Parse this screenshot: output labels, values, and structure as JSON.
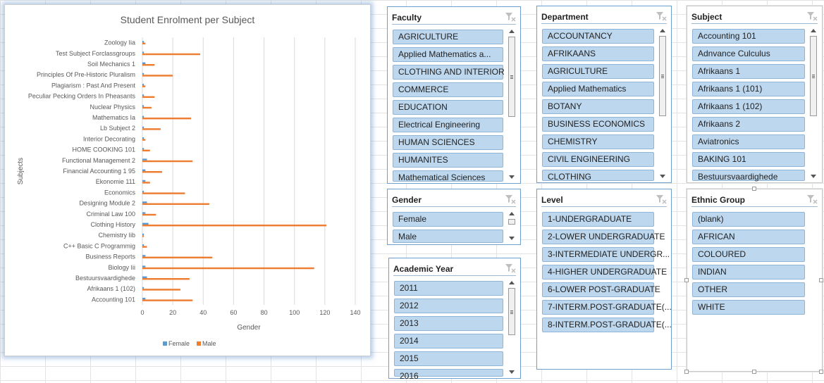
{
  "chart_data": {
    "type": "bar",
    "orientation": "horizontal",
    "title": "Student Enrolment per Subject",
    "xlabel": "Gender",
    "ylabel": "Subjects",
    "xlim": [
      0,
      140
    ],
    "xticks": [
      "0",
      "20",
      "40",
      "60",
      "80",
      "100",
      "120",
      "140"
    ],
    "grid": true,
    "legend_position": "bottom",
    "categories": [
      "Accounting 101",
      "Afrikaans 1 (102)",
      "Bestuursvaardighede",
      "Biology Iii",
      "Business Reports",
      "C++ Basic C Programmig",
      "Chemistry Iib",
      "Clothing History",
      "Criminal Law 100",
      "Designing Module 2",
      "Economics",
      "Ekonomie 111",
      "Financial Accounting 1 95",
      "Functional Management 2",
      "HOME COOKING 101",
      "Interior Decorating",
      "Lb Subject 2",
      "Mathematics Ia",
      "Nuclear Physics",
      "Peculiar Pecking Orders In Pheasants",
      "Plagiarism : Past And Present",
      "Principles Of Pre-Historic Pluralism",
      "Soil Mechanics 1",
      "Test Subject Forclassgroups",
      "Zoology Iia"
    ],
    "series": [
      {
        "name": "Female",
        "color": "#5b9bd5",
        "values": [
          2,
          1,
          3,
          2,
          2,
          1,
          1,
          4,
          2,
          3,
          1,
          2,
          2,
          3,
          1,
          1,
          1,
          1,
          1,
          1,
          1,
          1,
          2,
          1,
          1
        ]
      },
      {
        "name": "Male",
        "color": "#ed7d31",
        "values": [
          33,
          25,
          31,
          113,
          46,
          3,
          1,
          121,
          9,
          44,
          28,
          5,
          13,
          33,
          5,
          2,
          12,
          32,
          6,
          8,
          2,
          20,
          8,
          38,
          2
        ]
      }
    ]
  },
  "slicers": {
    "faculty": {
      "title": "Faculty",
      "items": [
        "AGRICULTURE",
        "Applied Mathematics a...",
        "CLOTHING AND INTERIOR",
        "COMMERCE",
        "EDUCATION",
        "Electrical Engineering",
        "HUMAN SCIENCES",
        "HUMANITES",
        "Mathematical Sciences"
      ]
    },
    "department": {
      "title": "Department",
      "items": [
        "ACCOUNTANCY",
        "AFRIKAANS",
        "AGRICULTURE",
        "Applied Mathematics",
        "BOTANY",
        "BUSINESS ECONOMICS",
        "CHEMISTRY",
        "CIVIL ENGINEERING",
        "CLOTHING"
      ]
    },
    "subject": {
      "title": "Subject",
      "items": [
        "Accounting 101",
        "Adnvance Culculus",
        "Afrikaans 1",
        "Afrikaans 1 (101)",
        "Afrikaans 1 (102)",
        "Afrikaans 2",
        "Aviatronics",
        "BAKING 101",
        "Bestuursvaardighede"
      ]
    },
    "gender": {
      "title": "Gender",
      "items": [
        "Female",
        "Male"
      ]
    },
    "academic_year": {
      "title": "Academic Year",
      "items": [
        "2011",
        "2012",
        "2013",
        "2014",
        "2015",
        "2016"
      ]
    },
    "level": {
      "title": "Level",
      "items": [
        "1-UNDERGRADUATE",
        "2-LOWER UNDERGRADUATE",
        "3-INTERMEDIATE UNDERGR...",
        "4-HIGHER UNDERGRADUATE",
        "6-LOWER POST-GRADUATE",
        "7-INTERM.POST-GRADUATE(...",
        "8-INTERM.POST-GRADUATE(..."
      ]
    },
    "ethnic_group": {
      "title": "Ethnic Group",
      "items": [
        "(blank)",
        "AFRICAN",
        "COLOURED",
        "INDIAN",
        "OTHER",
        "WHITE"
      ]
    }
  },
  "colors": {
    "item_fill": "#bdd7ee",
    "item_border": "#8eb4d8",
    "slicer_border": "#6d9fcf"
  }
}
